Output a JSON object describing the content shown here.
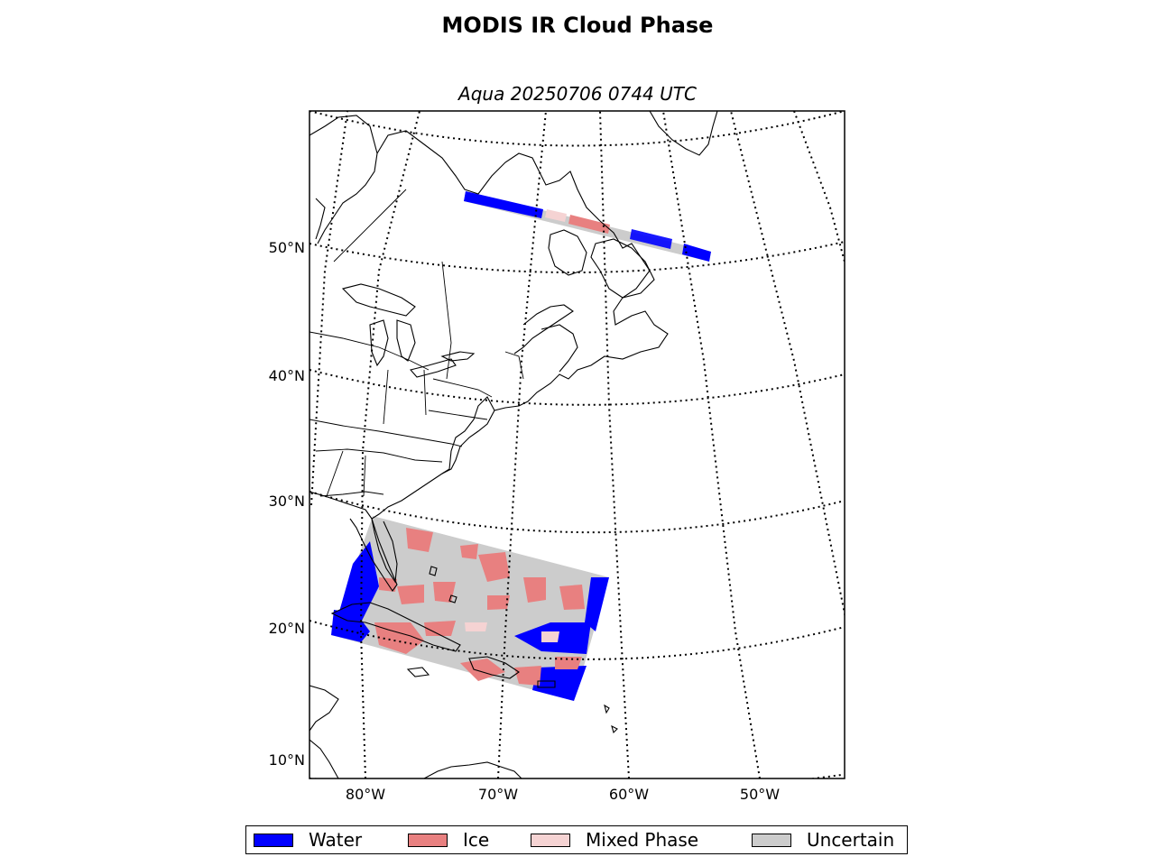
{
  "title": "MODIS IR Cloud Phase",
  "subtitle": "Aqua 20250706 0744 UTC",
  "lat_labels": [
    "50°N",
    "40°N",
    "30°N",
    "20°N",
    "10°N"
  ],
  "lon_labels": [
    "80°W",
    "70°W",
    "60°W",
    "50°W"
  ],
  "legend": [
    {
      "label": "Water",
      "color": "#0000ff"
    },
    {
      "label": "Ice",
      "color": "#e88080"
    },
    {
      "label": "Mixed Phase",
      "color": "#f5d3d3"
    },
    {
      "label": "Uncertain",
      "color": "#cccccc"
    }
  ],
  "colors": {
    "water": "#0000ff",
    "ice": "#e88080",
    "mixed": "#f5d3d3",
    "uncertain": "#cccccc"
  }
}
